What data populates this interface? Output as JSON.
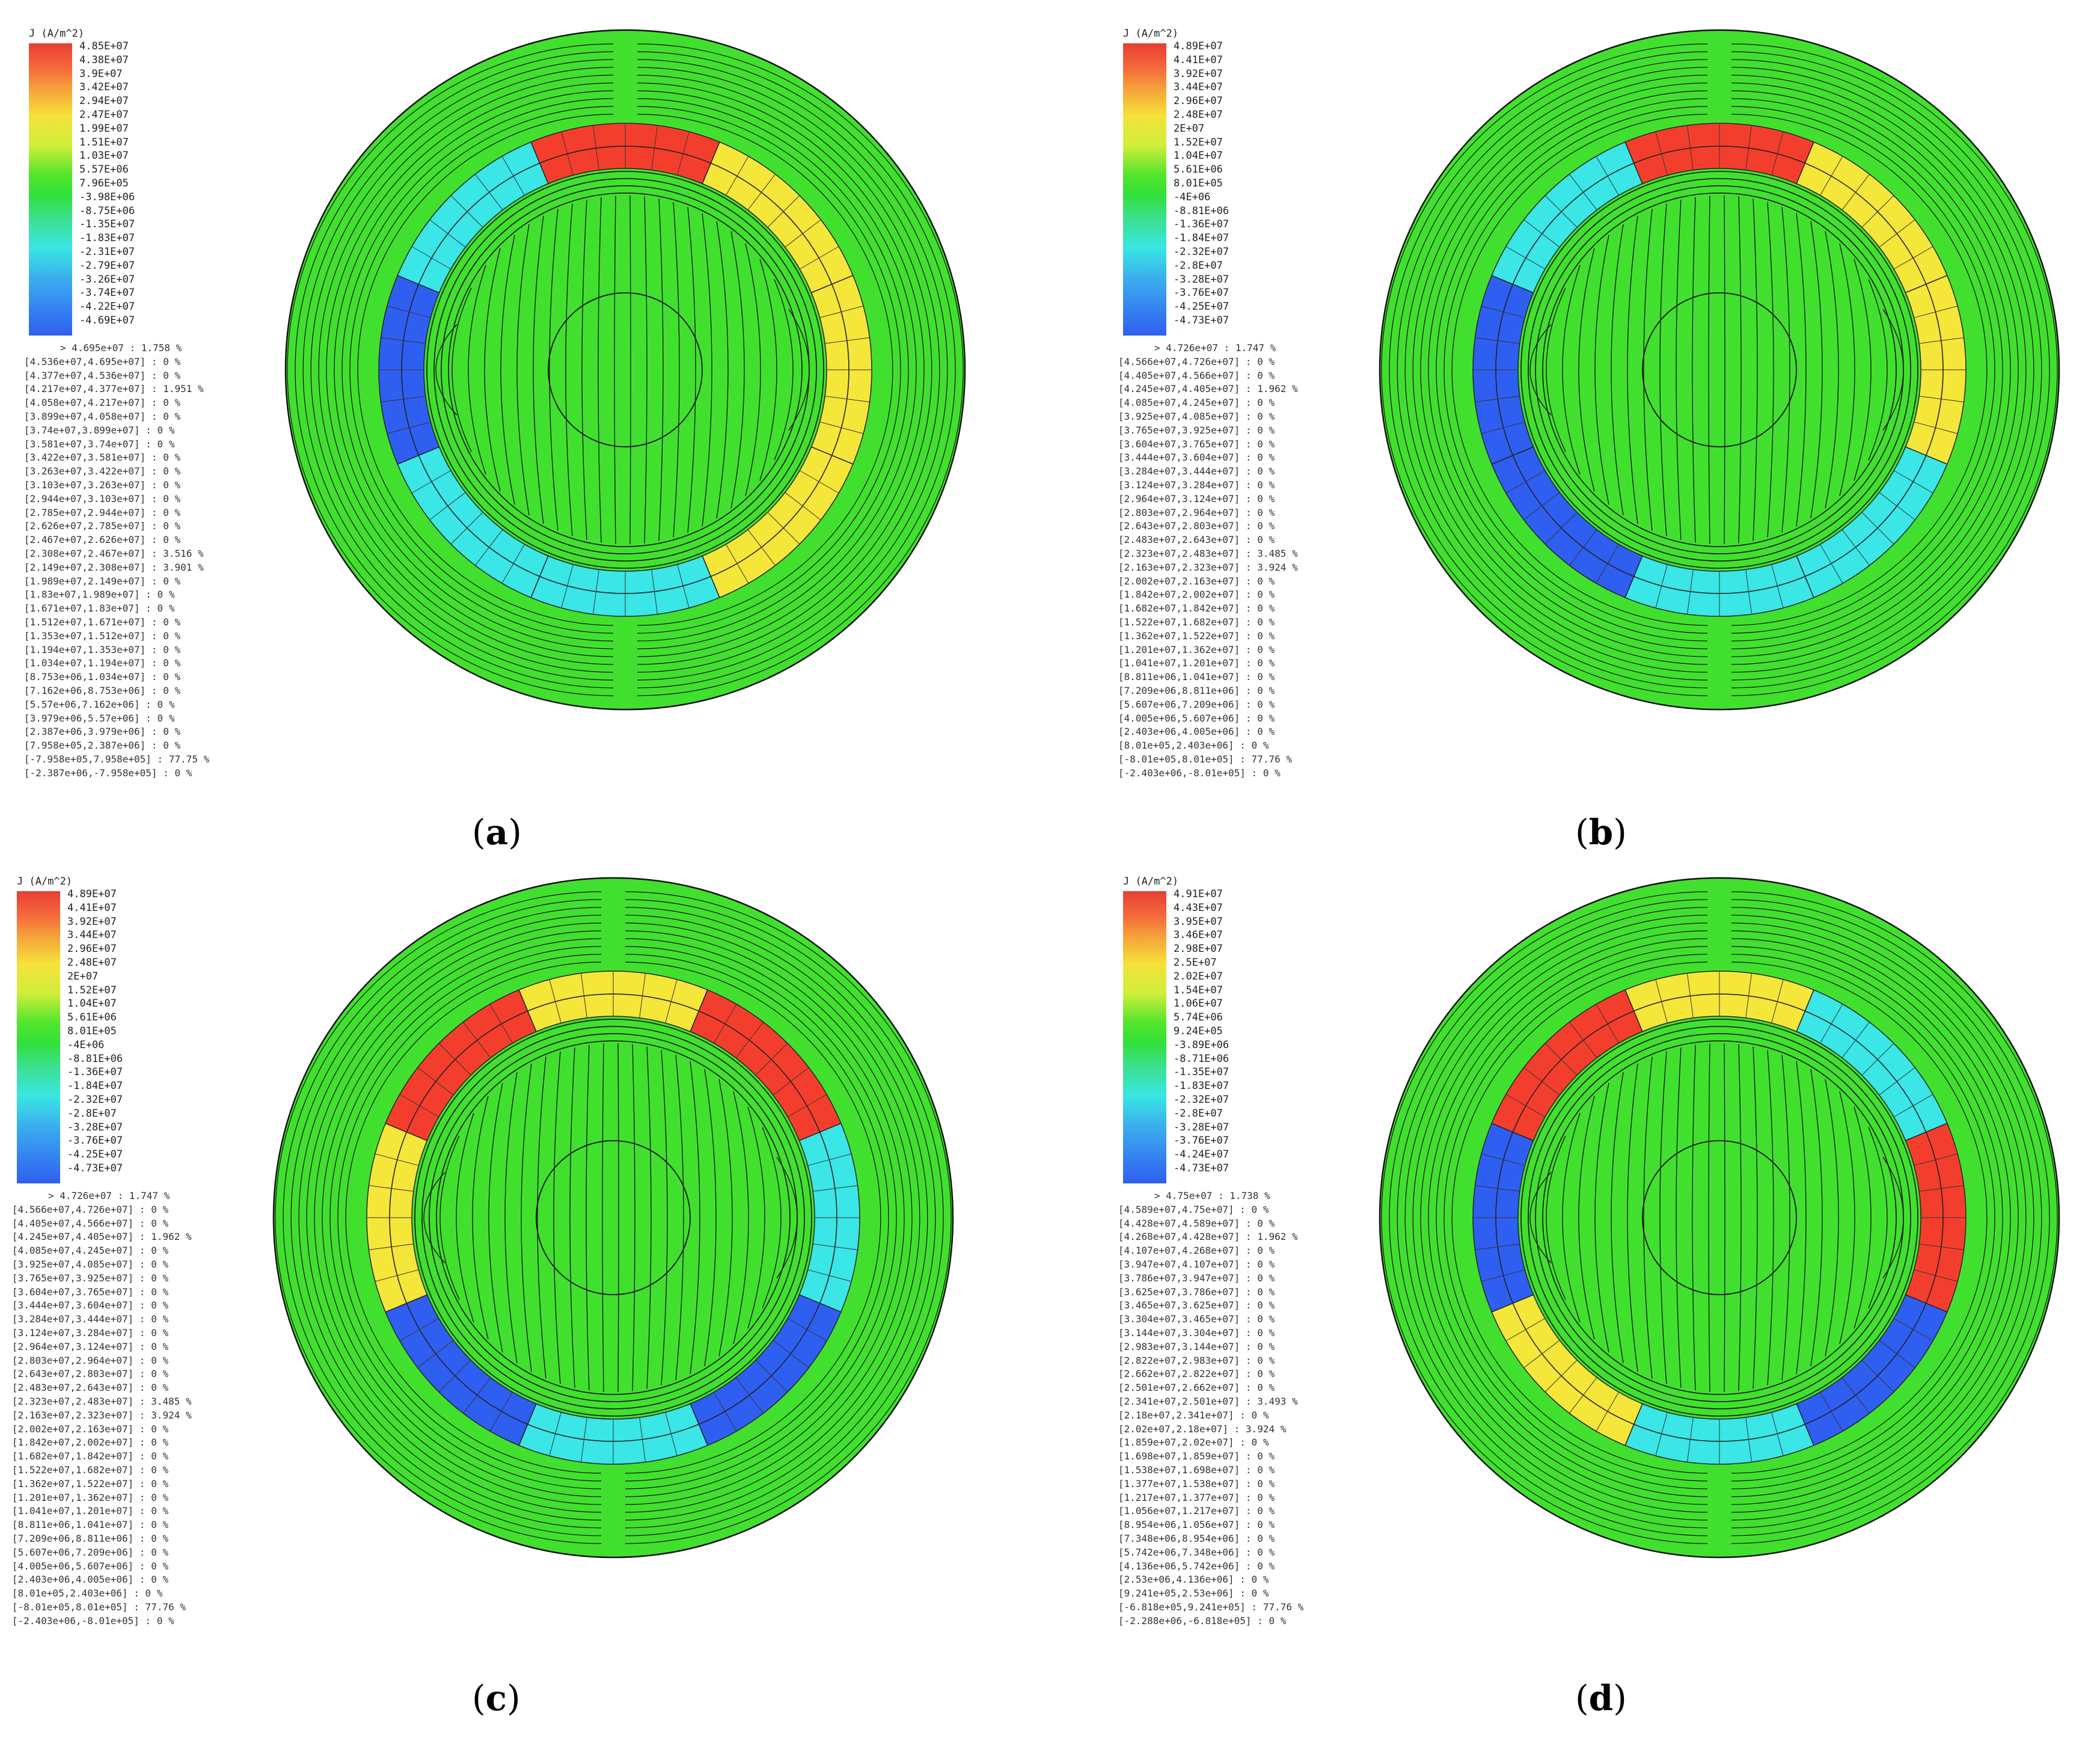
{
  "panels": [
    {
      "id": "a",
      "caption_letter": "a",
      "legend_title": "J (A/m^2)",
      "ticks": [
        "4.85E+07",
        "4.38E+07",
        "3.9E+07",
        "3.42E+07",
        "2.94E+07",
        "2.47E+07",
        "1.99E+07",
        "1.51E+07",
        "1.03E+07",
        "5.57E+06",
        "7.96E+05",
        "-3.98E+06",
        "-8.75E+06",
        "-1.35E+07",
        "-1.83E+07",
        "-2.31E+07",
        "-2.79E+07",
        "-3.26E+07",
        "-3.74E+07",
        "-4.22E+07",
        "-4.69E+07"
      ],
      "stats": [
        "> 4.695e+07 : 1.758 %",
        "[4.536e+07,4.695e+07] : 0 %",
        "[4.377e+07,4.536e+07] : 0 %",
        "[4.217e+07,4.377e+07] : 1.951 %",
        "[4.058e+07,4.217e+07] : 0 %",
        "[3.899e+07,4.058e+07] : 0 %",
        "[3.74e+07,3.899e+07] : 0 %",
        "[3.581e+07,3.74e+07] : 0 %",
        "[3.422e+07,3.581e+07] : 0 %",
        "[3.263e+07,3.422e+07] : 0 %",
        "[3.103e+07,3.263e+07] : 0 %",
        "[2.944e+07,3.103e+07] : 0 %",
        "[2.785e+07,2.944e+07] : 0 %",
        "[2.626e+07,2.785e+07] : 0 %",
        "[2.467e+07,2.626e+07] : 0 %",
        "[2.308e+07,2.467e+07] : 3.516 %",
        "[2.149e+07,2.308e+07] : 3.901 %",
        "[1.989e+07,2.149e+07] : 0 %",
        "[1.83e+07,1.989e+07] : 0 %",
        "[1.671e+07,1.83e+07] : 0 %",
        "[1.512e+07,1.671e+07] : 0 %",
        "[1.353e+07,1.512e+07] : 0 %",
        "[1.194e+07,1.353e+07] : 0 %",
        "[1.034e+07,1.194e+07] : 0 %",
        "[8.753e+06,1.034e+07] : 0 %",
        "[7.162e+06,8.753e+06] : 0 %",
        "[5.57e+06,7.162e+06] : 0 %",
        "[3.979e+06,5.57e+06] : 0 %",
        "[2.387e+06,3.979e+06] : 0 %",
        "[7.958e+05,2.387e+06] : 0 %",
        "[-7.958e+05,7.958e+05] : 77.75 %",
        "[-2.387e+06,-7.958e+05] : 0 %"
      ],
      "coil_colors": [
        "#f43e2d",
        "#f5e63a",
        "#f5e63a",
        "#f5e63a",
        "#3ae6e6",
        "#3ae6e6",
        "#2f5ff0",
        "#3ae6e6"
      ]
    },
    {
      "id": "b",
      "caption_letter": "b",
      "legend_title": "J (A/m^2)",
      "ticks": [
        "4.89E+07",
        "4.41E+07",
        "3.92E+07",
        "3.44E+07",
        "2.96E+07",
        "2.48E+07",
        "2E+07",
        "1.52E+07",
        "1.04E+07",
        "5.61E+06",
        "8.01E+05",
        "-4E+06",
        "-8.81E+06",
        "-1.36E+07",
        "-1.84E+07",
        "-2.32E+07",
        "-2.8E+07",
        "-3.28E+07",
        "-3.76E+07",
        "-4.25E+07",
        "-4.73E+07"
      ],
      "stats": [
        "> 4.726e+07 : 1.747 %",
        "[4.566e+07,4.726e+07] : 0 %",
        "[4.405e+07,4.566e+07] : 0 %",
        "[4.245e+07,4.405e+07] : 1.962 %",
        "[4.085e+07,4.245e+07] : 0 %",
        "[3.925e+07,4.085e+07] : 0 %",
        "[3.765e+07,3.925e+07] : 0 %",
        "[3.604e+07,3.765e+07] : 0 %",
        "[3.444e+07,3.604e+07] : 0 %",
        "[3.284e+07,3.444e+07] : 0 %",
        "[3.124e+07,3.284e+07] : 0 %",
        "[2.964e+07,3.124e+07] : 0 %",
        "[2.803e+07,2.964e+07] : 0 %",
        "[2.643e+07,2.803e+07] : 0 %",
        "[2.483e+07,2.643e+07] : 0 %",
        "[2.323e+07,2.483e+07] : 3.485 %",
        "[2.163e+07,2.323e+07] : 3.924 %",
        "[2.002e+07,2.163e+07] : 0 %",
        "[1.842e+07,2.002e+07] : 0 %",
        "[1.682e+07,1.842e+07] : 0 %",
        "[1.522e+07,1.682e+07] : 0 %",
        "[1.362e+07,1.522e+07] : 0 %",
        "[1.201e+07,1.362e+07] : 0 %",
        "[1.041e+07,1.201e+07] : 0 %",
        "[8.811e+06,1.041e+07] : 0 %",
        "[7.209e+06,8.811e+06] : 0 %",
        "[5.607e+06,7.209e+06] : 0 %",
        "[4.005e+06,5.607e+06] : 0 %",
        "[2.403e+06,4.005e+06] : 0 %",
        "[8.01e+05,2.403e+06] : 0 %",
        "[-8.01e+05,8.01e+05] : 77.76 %",
        "[-2.403e+06,-8.01e+05] : 0 %"
      ],
      "coil_colors": [
        "#f43e2d",
        "#f5e63a",
        "#f5e63a",
        "#3ae6e6",
        "#3ae6e6",
        "#2f5ff0",
        "#2f5ff0",
        "#3ae6e6"
      ]
    },
    {
      "id": "c",
      "caption_letter": "c",
      "legend_title": "J (A/m^2)",
      "ticks": [
        "4.89E+07",
        "4.41E+07",
        "3.92E+07",
        "3.44E+07",
        "2.96E+07",
        "2.48E+07",
        "2E+07",
        "1.52E+07",
        "1.04E+07",
        "5.61E+06",
        "8.01E+05",
        "-4E+06",
        "-8.81E+06",
        "-1.36E+07",
        "-1.84E+07",
        "-2.32E+07",
        "-2.8E+07",
        "-3.28E+07",
        "-3.76E+07",
        "-4.25E+07",
        "-4.73E+07"
      ],
      "stats": [
        "> 4.726e+07 : 1.747 %",
        "[4.566e+07,4.726e+07] : 0 %",
        "[4.405e+07,4.566e+07] : 0 %",
        "[4.245e+07,4.405e+07] : 1.962 %",
        "[4.085e+07,4.245e+07] : 0 %",
        "[3.925e+07,4.085e+07] : 0 %",
        "[3.765e+07,3.925e+07] : 0 %",
        "[3.604e+07,3.765e+07] : 0 %",
        "[3.444e+07,3.604e+07] : 0 %",
        "[3.284e+07,3.444e+07] : 0 %",
        "[3.124e+07,3.284e+07] : 0 %",
        "[2.964e+07,3.124e+07] : 0 %",
        "[2.803e+07,2.964e+07] : 0 %",
        "[2.643e+07,2.803e+07] : 0 %",
        "[2.483e+07,2.643e+07] : 0 %",
        "[2.323e+07,2.483e+07] : 3.485 %",
        "[2.163e+07,2.323e+07] : 3.924 %",
        "[2.002e+07,2.163e+07] : 0 %",
        "[1.842e+07,2.002e+07] : 0 %",
        "[1.682e+07,1.842e+07] : 0 %",
        "[1.522e+07,1.682e+07] : 0 %",
        "[1.362e+07,1.522e+07] : 0 %",
        "[1.201e+07,1.362e+07] : 0 %",
        "[1.041e+07,1.201e+07] : 0 %",
        "[8.811e+06,1.041e+07] : 0 %",
        "[7.209e+06,8.811e+06] : 0 %",
        "[5.607e+06,7.209e+06] : 0 %",
        "[4.005e+06,5.607e+06] : 0 %",
        "[2.403e+06,4.005e+06] : 0 %",
        "[8.01e+05,2.403e+06] : 0 %",
        "[-8.01e+05,8.01e+05] : 77.76 %",
        "[-2.403e+06,-8.01e+05] : 0 %"
      ],
      "coil_colors": [
        "#f5e63a",
        "#f43e2d",
        "#3ae6e6",
        "#2f5ff0",
        "#3ae6e6",
        "#2f5ff0",
        "#f5e63a",
        "#f43e2d"
      ]
    },
    {
      "id": "d",
      "caption_letter": "d",
      "legend_title": "J (A/m^2)",
      "ticks": [
        "4.91E+07",
        "4.43E+07",
        "3.95E+07",
        "3.46E+07",
        "2.98E+07",
        "2.5E+07",
        "2.02E+07",
        "1.54E+07",
        "1.06E+07",
        "5.74E+06",
        "9.24E+05",
        "-3.89E+06",
        "-8.71E+06",
        "-1.35E+07",
        "-1.83E+07",
        "-2.32E+07",
        "-2.8E+07",
        "-3.28E+07",
        "-3.76E+07",
        "-4.24E+07",
        "-4.73E+07"
      ],
      "stats": [
        "> 4.75e+07 : 1.738 %",
        "[4.589e+07,4.75e+07] : 0 %",
        "[4.428e+07,4.589e+07] : 0 %",
        "[4.268e+07,4.428e+07] : 1.962 %",
        "[4.107e+07,4.268e+07] : 0 %",
        "[3.947e+07,4.107e+07] : 0 %",
        "[3.786e+07,3.947e+07] : 0 %",
        "[3.625e+07,3.786e+07] : 0 %",
        "[3.465e+07,3.625e+07] : 0 %",
        "[3.304e+07,3.465e+07] : 0 %",
        "[3.144e+07,3.304e+07] : 0 %",
        "[2.983e+07,3.144e+07] : 0 %",
        "[2.822e+07,2.983e+07] : 0 %",
        "[2.662e+07,2.822e+07] : 0 %",
        "[2.501e+07,2.662e+07] : 0 %",
        "[2.341e+07,2.501e+07] : 3.493 %",
        "[2.18e+07,2.341e+07] : 0 %",
        "[2.02e+07,2.18e+07] : 3.924 %",
        "[1.859e+07,2.02e+07] : 0 %",
        "[1.698e+07,1.859e+07] : 0 %",
        "[1.538e+07,1.698e+07] : 0 %",
        "[1.377e+07,1.538e+07] : 0 %",
        "[1.217e+07,1.377e+07] : 0 %",
        "[1.056e+07,1.217e+07] : 0 %",
        "[8.954e+06,1.056e+07] : 0 %",
        "[7.348e+06,8.954e+06] : 0 %",
        "[5.742e+06,7.348e+06] : 0 %",
        "[4.136e+06,5.742e+06] : 0 %",
        "[2.53e+06,4.136e+06] : 0 %",
        "[9.241e+05,2.53e+06] : 0 %",
        "[-6.818e+05,9.241e+05] : 77.76 %",
        "[-2.288e+06,-6.818e+05] : 0 %"
      ],
      "coil_colors": [
        "#f5e63a",
        "#3ae6e6",
        "#f43e2d",
        "#2f5ff0",
        "#3ae6e6",
        "#f5e63a",
        "#2f5ff0",
        "#f43e2d"
      ]
    }
  ]
}
